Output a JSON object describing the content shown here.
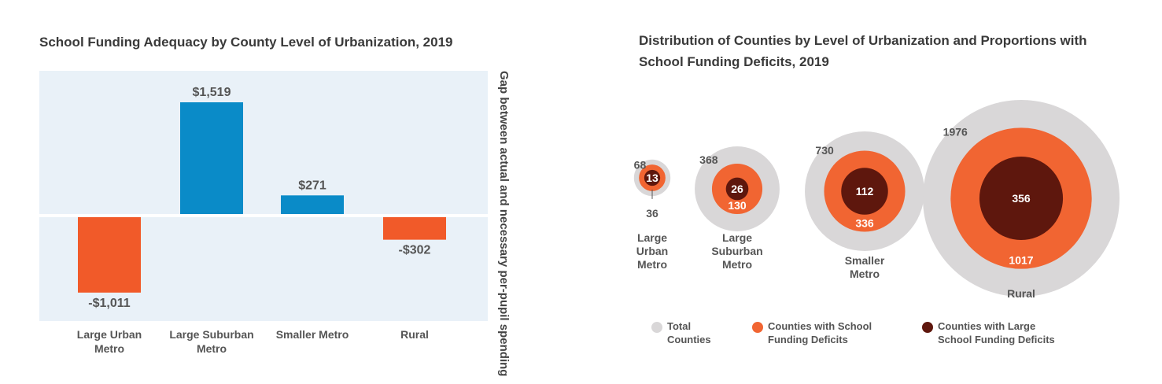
{
  "chart_data": [
    {
      "type": "bar",
      "title": "School Funding Adequacy by County Level of Urbanization, 2019",
      "ylabel": "Gap between actual and necessary per-pupil spending",
      "categories": [
        [
          "Large Urban",
          "Metro"
        ],
        [
          "Large Suburban",
          "Metro"
        ],
        [
          "Smaller Metro"
        ],
        [
          "Rural"
        ]
      ],
      "values": [
        -1011,
        1519,
        271,
        -302
      ],
      "value_labels": [
        "-$1,011",
        "$1,519",
        "$271",
        "-$302"
      ],
      "ylim": [
        -1400,
        1900
      ],
      "grid": false,
      "colors": {
        "positive": "#0a8bc8",
        "negative": "#f15a29",
        "background": "#e9f1f8"
      }
    },
    {
      "type": "bubble",
      "title": "Distribution of Counties by Level of Urbanization and Proportions with School Funding Deficits, 2019",
      "categories": [
        [
          "Large",
          "Urban",
          "Metro"
        ],
        [
          "Large",
          "Suburban",
          "Metro"
        ],
        [
          "Smaller",
          "Metro"
        ],
        [
          "Rural"
        ]
      ],
      "series": [
        {
          "name": "Total Counties",
          "values": [
            68,
            368,
            730,
            1976
          ],
          "color": "#d9d7d8"
        },
        {
          "name": "Counties with School Funding Deficits",
          "values": [
            36,
            130,
            336,
            1017
          ],
          "color": "#f16532"
        },
        {
          "name": "Counties with Large School Funding Deficits",
          "values": [
            13,
            26,
            112,
            356
          ],
          "color": "#5e170d"
        }
      ],
      "legend": {
        "position": "bottom",
        "items": [
          {
            "lines": [
              "Total",
              "Counties"
            ],
            "color": "#d9d7d8"
          },
          {
            "lines": [
              "Counties with School",
              "Funding Deficits"
            ],
            "color": "#f16532"
          },
          {
            "lines": [
              "Counties with Large",
              "School Funding Deficits"
            ],
            "color": "#5e170d"
          }
        ]
      }
    }
  ]
}
